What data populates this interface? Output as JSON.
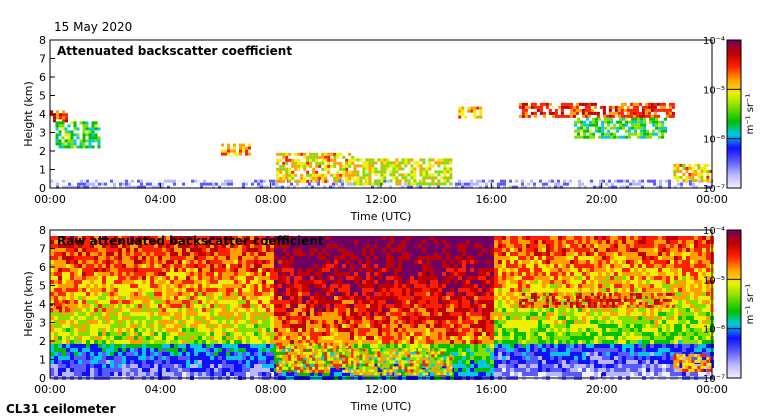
{
  "header": {
    "date": "15 May 2020"
  },
  "footer": {
    "instrument": "CL31 ceilometer"
  },
  "colors": {
    "scale": [
      "#f2f2ff",
      "#b8b8ff",
      "#5a5aff",
      "#1010ff",
      "#00c8e8",
      "#00c000",
      "#80e000",
      "#f0f000",
      "#ffa000",
      "#ff2000",
      "#c00000",
      "#700060"
    ]
  },
  "chart_data": [
    {
      "type": "heatmap",
      "title": "Attenuated backscatter coefficient",
      "xlabel": "Time (UTC)",
      "ylabel": "Height (km)",
      "x_ticks": [
        "00:00",
        "04:00",
        "08:00",
        "12:00",
        "16:00",
        "20:00",
        "00:00"
      ],
      "xlim_hours": [
        0,
        24
      ],
      "y_ticks": [
        "0",
        "1",
        "2",
        "3",
        "4",
        "5",
        "6",
        "7",
        "8"
      ],
      "ylim": [
        0,
        8
      ],
      "colorbar": {
        "label": "m⁻¹ sr⁻¹",
        "ticks": [
          "10⁻⁷",
          "10⁻⁶",
          "10⁻⁵",
          "10⁻⁴"
        ],
        "log_range": [
          -7,
          -4
        ]
      },
      "features": [
        {
          "name": "boundary layer",
          "t0": 0,
          "t1": 24,
          "h0": 0.0,
          "h1": 0.45,
          "level": 0.2
        },
        {
          "name": "morning cloud",
          "t0": 0,
          "t1": 0.6,
          "h0": 3.7,
          "h1": 4.2,
          "level": 0.9
        },
        {
          "name": "morning cloud fall",
          "t0": 0.2,
          "t1": 1.8,
          "h0": 2.2,
          "h1": 3.6,
          "level": 0.6
        },
        {
          "name": "cloud 1",
          "t0": 6.2,
          "t1": 7.2,
          "h0": 1.9,
          "h1": 2.4,
          "level": 0.85
        },
        {
          "name": "cloud 2",
          "t0": 8.2,
          "t1": 11.0,
          "h0": 0.4,
          "h1": 1.9,
          "level": 0.8
        },
        {
          "name": "cloud 3",
          "t0": 11.0,
          "t1": 14.5,
          "h0": 0.3,
          "h1": 1.6,
          "level": 0.75
        },
        {
          "name": "aloft patch",
          "t0": 14.8,
          "t1": 15.6,
          "h0": 3.9,
          "h1": 4.4,
          "level": 0.85
        },
        {
          "name": "cirrus",
          "t0": 17.0,
          "t1": 22.6,
          "h0": 3.85,
          "h1": 4.6,
          "level": 0.95
        },
        {
          "name": "virga",
          "t0": 19.0,
          "t1": 22.3,
          "h0": 2.8,
          "h1": 3.8,
          "level": 0.6
        },
        {
          "name": "late low cloud",
          "t0": 22.6,
          "t1": 24,
          "h0": 0.4,
          "h1": 1.3,
          "level": 0.8
        }
      ]
    },
    {
      "type": "heatmap",
      "title": "Raw attenuated backscatter coefficient",
      "xlabel": "Time (UTC)",
      "ylabel": "Height (km)",
      "x_ticks": [
        "00:00",
        "04:00",
        "08:00",
        "12:00",
        "16:00",
        "20:00",
        "00:00"
      ],
      "xlim_hours": [
        0,
        24
      ],
      "y_ticks": [
        "0",
        "1",
        "2",
        "3",
        "4",
        "5",
        "6",
        "7",
        "8"
      ],
      "ylim": [
        0,
        8
      ],
      "colorbar": {
        "label": "m⁻¹ sr⁻¹",
        "ticks": [
          "10⁻⁷",
          "10⁻⁶",
          "10⁻⁵",
          "10⁻⁴"
        ],
        "log_range": [
          -7,
          -4
        ]
      },
      "features": [
        {
          "name": "morning cloud",
          "t0": 0,
          "t1": 0.6,
          "h0": 3.7,
          "h1": 4.2,
          "level": 0.9
        },
        {
          "name": "cloud 2",
          "t0": 8.2,
          "t1": 11.0,
          "h0": 0.4,
          "h1": 1.9,
          "level": 0.85
        },
        {
          "name": "cloud 3",
          "t0": 11.0,
          "t1": 14.5,
          "h0": 0.3,
          "h1": 1.6,
          "level": 0.8
        },
        {
          "name": "cirrus",
          "t0": 17.0,
          "t1": 22.6,
          "h0": 3.85,
          "h1": 4.6,
          "level": 0.95
        },
        {
          "name": "late low cloud",
          "t0": 22.6,
          "t1": 24,
          "h0": 0.4,
          "h1": 1.3,
          "level": 0.85
        }
      ]
    }
  ]
}
